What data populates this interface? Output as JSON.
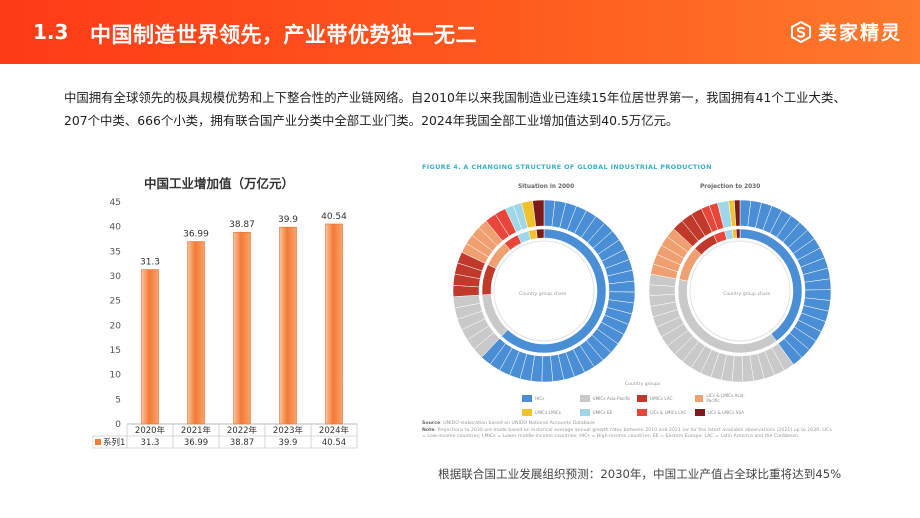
{
  "header": {
    "section": "1.3",
    "title": "中国制造世界领先，产业带优势独一无二",
    "brand": "卖家精灵"
  },
  "paragraph": "中国拥有全球领先的极具规模优势和上下整合性的产业链网络。自2010年以来我国制造业已连续15年位居世界第一，我国拥有41个工业大类、207个中类、666个小类，拥有联合国产业分类中全部工业门类。2024年我国全部工业增加值达到40.5万亿元。",
  "chart_data": {
    "type": "bar",
    "title": "中国工业增加值（万亿元）",
    "categories": [
      "2020年",
      "2021年",
      "2022年",
      "2023年",
      "2024年"
    ],
    "series": [
      {
        "name": "系列1",
        "values": [
          31.3,
          36.99,
          38.87,
          39.9,
          40.54
        ]
      }
    ],
    "yticks": [
      "0",
      "5",
      "10",
      "15",
      "20",
      "25",
      "30",
      "35",
      "40",
      "45"
    ],
    "ylim": [
      0,
      45
    ],
    "data_table": true,
    "bar_color": "#f47a35"
  },
  "figure": {
    "caption": "FIGURE 4. A CHANGING STRUCTURE OF GLOBAL INDUSTRIAL PRODUCTION",
    "left_title": "Situation in 2000",
    "right_title": "Projection to 2030",
    "center_label": "Country group share",
    "legend_title": "Country groups",
    "legend": [
      {
        "label": "HICs",
        "color": "#4a8fd6"
      },
      {
        "label": "UMICs Asia-Pacific",
        "color": "#c9c9c9"
      },
      {
        "label": "UMICs LAC",
        "color": "#c0392b"
      },
      {
        "label": "LICs & LMICs Asia-Pacific",
        "color": "#f0a070"
      },
      {
        "label": "LMICs LMICs",
        "color": "#f2c12e"
      },
      {
        "label": "UMICs EE",
        "color": "#9fd6e8"
      },
      {
        "label": "LICs & LMICs LAC",
        "color": "#e8463a"
      },
      {
        "label": "LICs & LMICs SSA",
        "color": "#7b1b1b"
      }
    ],
    "source_label": "Source",
    "source": ": UNIDO elaboration based on UNIDO National Accounts Database",
    "note_label": "Note",
    "note": ": Projections to 2030 are made based on historical average annual growth rates between 2010 and 2021 (or for the latest available observations (2021) up to 2030. LICs = Low-income countries; LMICs = Lower middle-income countries; HICs = High-income countries; EE = Eastern Europe; LAC = Latin America and the Caribbean."
  },
  "caption": "根据联合国工业发展组织预测：2030年，中国工业产值占全球比重将达到45%"
}
